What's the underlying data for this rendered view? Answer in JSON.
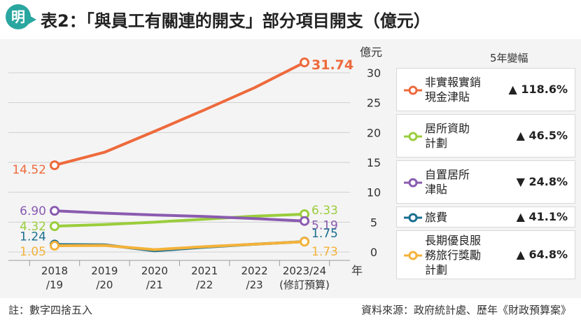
{
  "header": {
    "logo": "明",
    "title": "表2：「與員工有關連的開支」部分項目開支（億元）"
  },
  "legend": {
    "header": "5年變幅"
  },
  "footer": {
    "note": "註：數字四捨五入",
    "source": "資料來源：政府統計處、歷年《財政預算案》"
  },
  "colors": {
    "orange": "#ee6a3c",
    "green": "#9acd3c",
    "purple": "#8a5bb0",
    "blue": "#1a6f8f",
    "yellow": "#f4b23a",
    "panel": "#f4f4f4",
    "accent": "#2aa6a0"
  },
  "chart_data": {
    "type": "line",
    "title": "",
    "ylabel": "億元",
    "xlabel": "年",
    "ylim": [
      0,
      30
    ],
    "yticks": [
      "0",
      "5",
      "10",
      "15",
      "20",
      "25",
      "30"
    ],
    "categories": [
      "2018/19",
      "2019/20",
      "2020/21",
      "2021/22",
      "2022/23",
      "2023/24(修訂預算)"
    ],
    "x_labels": [
      [
        "2018",
        "/19"
      ],
      [
        "2019",
        "/20"
      ],
      [
        "2020",
        "/21"
      ],
      [
        "2021",
        "/22"
      ],
      [
        "2022",
        "/23"
      ],
      [
        "2023/24",
        "(修訂預算)"
      ]
    ],
    "series": [
      {
        "name": "非實報實銷現金津貼",
        "name_lines": [
          "非實報實銷",
          "現金津貼"
        ],
        "color": "#ee6a3c",
        "values": [
          14.52,
          16.7,
          20.2,
          23.8,
          27.5,
          31.74
        ],
        "start_label": "14.52",
        "end_label": "31.74",
        "change_dir": "▲",
        "change": "118.6%"
      },
      {
        "name": "居所資助計劃",
        "name_lines": [
          "居所資助",
          "計劃"
        ],
        "color": "#9acd3c",
        "values": [
          4.32,
          4.6,
          5.0,
          5.5,
          6.0,
          6.33
        ],
        "start_label": "4.32",
        "end_label": "6.33",
        "change_dir": "▲",
        "change": "46.5%"
      },
      {
        "name": "自置居所津貼",
        "name_lines": [
          "自置居所",
          "津貼"
        ],
        "color": "#8a5bb0",
        "values": [
          6.9,
          6.5,
          6.2,
          5.95,
          5.6,
          5.19
        ],
        "start_label": "6.90",
        "end_label": "5.19",
        "change_dir": "▼",
        "change": "24.8%"
      },
      {
        "name": "旅費",
        "name_lines": [
          "旅費"
        ],
        "color": "#1a6f8f",
        "values": [
          1.24,
          1.2,
          0.2,
          0.8,
          1.3,
          1.75
        ],
        "start_label": "1.24",
        "end_label": "1.75",
        "change_dir": "▲",
        "change": "41.1%"
      },
      {
        "name": "長期優良服務旅行獎勵計劃",
        "name_lines": [
          "長期優良服",
          "務旅行獎勵",
          "計劃"
        ],
        "color": "#f4b23a",
        "values": [
          1.05,
          1.1,
          0.4,
          0.9,
          1.3,
          1.73
        ],
        "start_label": "1.05",
        "end_label": "1.73",
        "change_dir": "▲",
        "change": "64.8%"
      }
    ],
    "grid": true,
    "legend_position": "right"
  }
}
